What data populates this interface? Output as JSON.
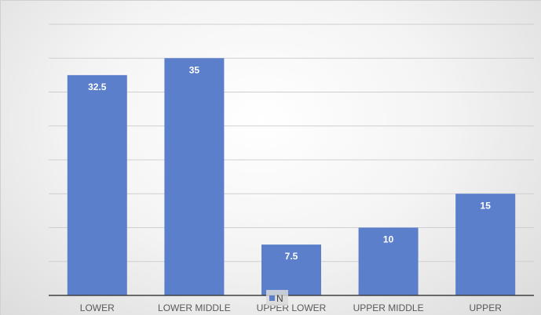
{
  "chart_data": {
    "type": "bar",
    "categories": [
      "LOWER",
      "LOWER MIDDLE",
      "UPPER LOWER",
      "UPPER MIDDLE",
      "UPPER"
    ],
    "series": [
      {
        "name": "N",
        "values": [
          32.5,
          35,
          7.5,
          10,
          15
        ],
        "color": "#5b7fcb"
      }
    ],
    "title": "",
    "xlabel": "",
    "ylabel": "",
    "ylim": [
      0,
      40
    ],
    "gridlines": true,
    "gridline_step": 5,
    "legend_position": "bottom",
    "data_labels": true,
    "bar_color": "#5b7fcb",
    "gridline_color": "#cfcfcf",
    "axis_color": "#404040"
  }
}
